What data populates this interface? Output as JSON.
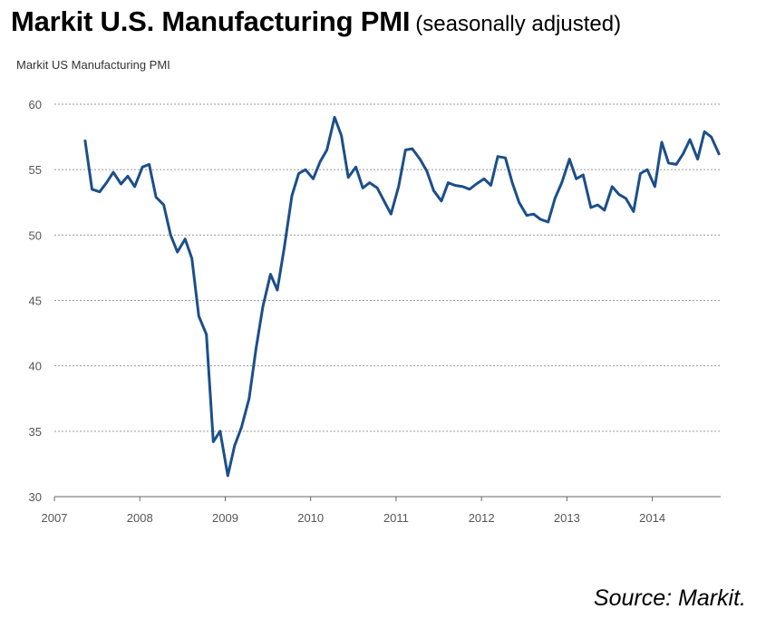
{
  "title": {
    "main": "Markit U.S. Manufacturing PMI",
    "subtitle": "(seasonally adjusted)"
  },
  "source": "Source: Markit.",
  "chart_data": {
    "type": "line",
    "title": "Markit US Manufacturing  PMI",
    "xlabel": "",
    "ylabel": "",
    "xlim": [
      2007.0,
      2014.8
    ],
    "ylim": [
      30,
      60
    ],
    "yticks": [
      30,
      35,
      40,
      45,
      50,
      55,
      60
    ],
    "xticks": [
      2007,
      2008,
      2009,
      2010,
      2011,
      2012,
      2013,
      2014
    ],
    "grid": "horizontal-dashed",
    "legend": "none",
    "color": "#1c4f8a",
    "series": [
      {
        "points": [
          [
            2007.36,
            57.2
          ],
          [
            2007.44,
            53.5
          ],
          [
            2007.53,
            53.3
          ],
          [
            2007.61,
            54.0
          ],
          [
            2007.69,
            54.8
          ],
          [
            2007.78,
            53.9
          ],
          [
            2007.86,
            54.5
          ],
          [
            2007.94,
            53.7
          ],
          [
            2008.03,
            55.2
          ],
          [
            2008.11,
            55.4
          ],
          [
            2008.19,
            52.9
          ],
          [
            2008.28,
            52.3
          ],
          [
            2008.36,
            50.0
          ],
          [
            2008.44,
            48.7
          ],
          [
            2008.53,
            49.7
          ],
          [
            2008.61,
            48.2
          ],
          [
            2008.69,
            43.8
          ],
          [
            2008.78,
            42.4
          ],
          [
            2008.86,
            34.2
          ],
          [
            2008.94,
            35.0
          ],
          [
            2009.03,
            31.6
          ],
          [
            2009.11,
            33.9
          ],
          [
            2009.19,
            35.3
          ],
          [
            2009.28,
            37.5
          ],
          [
            2009.36,
            41.3
          ],
          [
            2009.44,
            44.5
          ],
          [
            2009.53,
            47.0
          ],
          [
            2009.61,
            45.8
          ],
          [
            2009.69,
            49.0
          ],
          [
            2009.78,
            53.0
          ],
          [
            2009.86,
            54.7
          ],
          [
            2009.94,
            55.0
          ],
          [
            2010.03,
            54.3
          ],
          [
            2010.11,
            55.6
          ],
          [
            2010.19,
            56.5
          ],
          [
            2010.28,
            59.0
          ],
          [
            2010.36,
            57.6
          ],
          [
            2010.44,
            54.4
          ],
          [
            2010.53,
            55.2
          ],
          [
            2010.61,
            53.6
          ],
          [
            2010.69,
            54.0
          ],
          [
            2010.78,
            53.6
          ],
          [
            2010.86,
            52.6
          ],
          [
            2010.94,
            51.6
          ],
          [
            2011.03,
            53.7
          ],
          [
            2011.11,
            56.5
          ],
          [
            2011.19,
            56.6
          ],
          [
            2011.28,
            55.8
          ],
          [
            2011.36,
            54.9
          ],
          [
            2011.44,
            53.4
          ],
          [
            2011.53,
            52.6
          ],
          [
            2011.61,
            54.0
          ],
          [
            2011.69,
            53.8
          ],
          [
            2011.78,
            53.7
          ],
          [
            2011.86,
            53.5
          ],
          [
            2011.94,
            53.9
          ],
          [
            2012.03,
            54.3
          ],
          [
            2012.11,
            53.8
          ],
          [
            2012.19,
            56.0
          ],
          [
            2012.28,
            55.9
          ],
          [
            2012.36,
            54.0
          ],
          [
            2012.44,
            52.5
          ],
          [
            2012.53,
            51.5
          ],
          [
            2012.61,
            51.6
          ],
          [
            2012.69,
            51.2
          ],
          [
            2012.78,
            51.0
          ],
          [
            2012.86,
            52.8
          ],
          [
            2012.94,
            54.0
          ],
          [
            2013.03,
            55.8
          ],
          [
            2013.11,
            54.3
          ],
          [
            2013.19,
            54.6
          ],
          [
            2013.28,
            52.1
          ],
          [
            2013.36,
            52.3
          ],
          [
            2013.44,
            51.9
          ],
          [
            2013.53,
            53.7
          ],
          [
            2013.61,
            53.1
          ],
          [
            2013.69,
            52.8
          ],
          [
            2013.78,
            51.8
          ],
          [
            2013.86,
            54.7
          ],
          [
            2013.94,
            55.0
          ],
          [
            2014.03,
            53.7
          ],
          [
            2014.11,
            57.1
          ],
          [
            2014.19,
            55.5
          ],
          [
            2014.28,
            55.4
          ],
          [
            2014.36,
            56.2
          ],
          [
            2014.44,
            57.3
          ],
          [
            2014.53,
            55.8
          ],
          [
            2014.61,
            57.9
          ],
          [
            2014.69,
            57.5
          ],
          [
            2014.78,
            56.2
          ]
        ]
      }
    ]
  }
}
